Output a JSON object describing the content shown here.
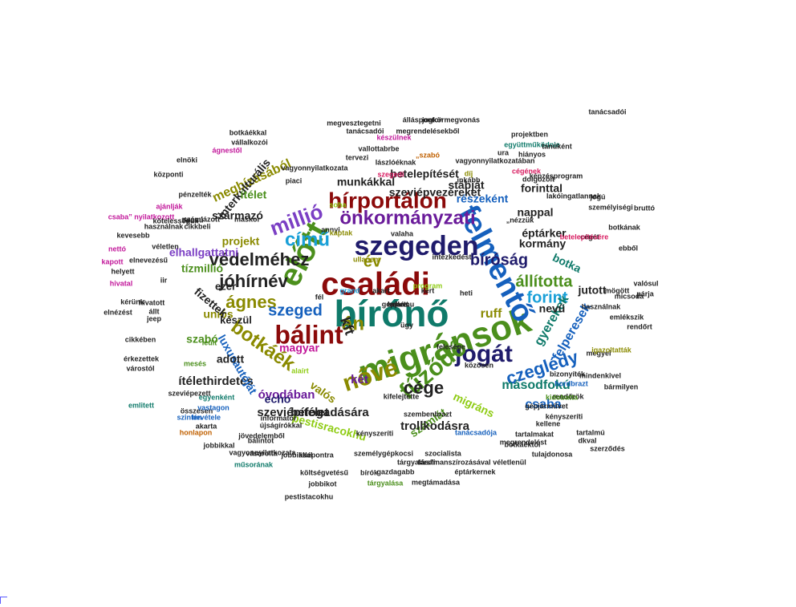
{
  "colors": {
    "navy": "#1f1b6b",
    "darkred": "#8b0a0a",
    "green": "#4b8f1c",
    "blue": "#1560bd",
    "purple": "#6a1b9a",
    "magenta": "#c2179a",
    "olive": "#8a8a00",
    "teal": "#0f7a6a",
    "brown": "#6b3a10",
    "dark": "#222222",
    "orange": "#c06000",
    "lime": "#8fcc14",
    "sky": "#1aa0d8",
    "rose": "#d81b60",
    "violet": "#7b3fc4"
  },
  "words": [
    {
      "t": "bírónő",
      "c": "teal",
      "s": 46
    },
    {
      "t": "családi",
      "c": "darkred",
      "s": 40
    },
    {
      "t": "migránsok",
      "c": "green",
      "s": 44
    },
    {
      "t": "előtt",
      "c": "green",
      "s": 40
    },
    {
      "t": "felmentő",
      "c": "blue",
      "s": 38
    },
    {
      "t": "szegeden",
      "c": "navy",
      "s": 34
    },
    {
      "t": "bálint",
      "c": "darkred",
      "s": 32
    },
    {
      "t": "jogát",
      "c": "navy",
      "s": 30
    },
    {
      "t": "fűződő",
      "c": "green",
      "s": 30
    },
    {
      "t": "nővé",
      "c": "olive",
      "s": 30
    },
    {
      "t": "hírportálon",
      "c": "darkred",
      "s": 28
    },
    {
      "t": "önkormányzati",
      "c": "purple",
      "s": 24
    },
    {
      "t": "védelméhez",
      "c": "dark",
      "s": 22
    },
    {
      "t": "jóhírnév",
      "c": "dark",
      "s": 22
    },
    {
      "t": "ágnes",
      "c": "olive",
      "s": 22
    },
    {
      "t": "millió",
      "c": "violet",
      "s": 26
    },
    {
      "t": "című",
      "c": "sky",
      "s": 24
    },
    {
      "t": "bíróság",
      "c": "navy",
      "s": 20
    },
    {
      "t": "állította",
      "c": "green",
      "s": 20
    },
    {
      "t": "forint",
      "c": "sky",
      "s": 20
    },
    {
      "t": "szeged",
      "c": "blue",
      "s": 20
    },
    {
      "t": "botkáék",
      "c": "olive",
      "s": 24
    },
    {
      "t": "cége",
      "c": "dark",
      "s": 22
    },
    {
      "t": "czeglédy",
      "c": "blue",
      "s": 22
    },
    {
      "t": "án",
      "c": "olive",
      "s": 24
    },
    {
      "t": "év",
      "c": "olive",
      "s": 20
    },
    {
      "t": "kft",
      "c": "dark",
      "s": 18
    },
    {
      "t": "magyar",
      "c": "magenta",
      "s": 14
    },
    {
      "t": "felperesek",
      "c": "blue",
      "s": 16
    },
    {
      "t": "gyerekek",
      "c": "teal",
      "s": 16
    },
    {
      "t": "ruff",
      "c": "olive",
      "s": 16
    },
    {
      "t": "másodfokú",
      "c": "teal",
      "s": 16
    },
    {
      "t": "csaba",
      "c": "blue",
      "s": 16
    },
    {
      "t": "migráns",
      "c": "lime",
      "s": 14
    },
    {
      "t": "számlát",
      "c": "green",
      "s": 14
    },
    {
      "t": "trollkodásra",
      "c": "dark",
      "s": 15
    },
    {
      "t": "befogadására",
      "c": "dark",
      "s": 15
    },
    {
      "t": "szeviépítélet",
      "c": "dark",
      "s": 15
    },
    {
      "t": "ítélethirdetés",
      "c": "dark",
      "s": 15
    },
    {
      "t": "óvodában",
      "c": "purple",
      "s": 15
    },
    {
      "t": "echo",
      "c": "navy",
      "s": 14
    },
    {
      "t": "pestisracokhu",
      "c": "lime",
      "s": 14
    },
    {
      "t": "két",
      "c": "purple",
      "s": 15
    },
    {
      "t": "valós",
      "c": "olive",
      "s": 14
    },
    {
      "t": "luxusautóját",
      "c": "blue",
      "s": 14
    },
    {
      "t": "adott",
      "c": "dark",
      "s": 14
    },
    {
      "t": "szabó",
      "c": "green",
      "s": 14
    },
    {
      "t": "uniós",
      "c": "olive",
      "s": 14
    },
    {
      "t": "fizettek",
      "c": "dark",
      "s": 14
    },
    {
      "t": "tízmillió",
      "c": "green",
      "s": 14
    },
    {
      "t": "elhallgattatni",
      "c": "violet",
      "s": 14
    },
    {
      "t": "megbízásából",
      "c": "olive",
      "s": 16
    },
    {
      "t": "interkulturális",
      "c": "dark",
      "s": 14
    },
    {
      "t": "származó",
      "c": "dark",
      "s": 14
    },
    {
      "t": "projekt",
      "c": "olive",
      "s": 14
    },
    {
      "t": "ítélet",
      "c": "green",
      "s": 14
    },
    {
      "t": "munkákkal",
      "c": "dark",
      "s": 14
    },
    {
      "t": "betelepítését",
      "c": "dark",
      "s": 14
    },
    {
      "t": "szeviépvezéreket",
      "c": "dark",
      "s": 14
    },
    {
      "t": "stábját",
      "c": "dark",
      "s": 14
    },
    {
      "t": "részeként",
      "c": "blue",
      "s": 14
    },
    {
      "t": "forinttal",
      "c": "dark",
      "s": 14
    },
    {
      "t": "nappal",
      "c": "dark",
      "s": 14
    },
    {
      "t": "éptárker",
      "c": "dark",
      "s": 14
    },
    {
      "t": "kormány",
      "c": "dark",
      "s": 14
    },
    {
      "t": "botka",
      "c": "teal",
      "s": 14
    },
    {
      "t": "jutott",
      "c": "dark",
      "s": 14
    },
    {
      "t": "nevű",
      "c": "dark",
      "s": 14
    },
    {
      "t": "készül",
      "c": "dark",
      "s": 13
    },
    {
      "t": "ezer",
      "c": "dark",
      "s": 13
    },
    {
      "t": "rendőrök",
      "c": "dark",
      "s": 9
    },
    {
      "t": "bizonyíték",
      "c": "dark",
      "s": 9
    },
    {
      "t": "kényszeríti",
      "c": "dark",
      "s": 9
    },
    {
      "t": "tartalmakat",
      "c": "dark",
      "s": 9
    },
    {
      "t": "tárgyalásán",
      "c": "dark",
      "s": 9
    },
    {
      "t": "társfinanszírozásával",
      "c": "dark",
      "s": 9
    },
    {
      "t": "véletlenül",
      "c": "dark",
      "s": 9
    },
    {
      "t": "gazdagabb",
      "c": "dark",
      "s": 9
    },
    {
      "t": "éptárkernek",
      "c": "dark",
      "s": 9
    },
    {
      "t": "megtámadása",
      "c": "dark",
      "s": 9
    },
    {
      "t": "jobbikot",
      "c": "dark",
      "s": 9
    },
    {
      "t": "tárgyalása",
      "c": "green",
      "s": 9
    },
    {
      "t": "költségvetésű",
      "c": "dark",
      "s": 9
    },
    {
      "t": "bírók",
      "c": "dark",
      "s": 9
    },
    {
      "t": "szocialista",
      "c": "dark",
      "s": 9
    },
    {
      "t": "vagyonnyilatkozata",
      "c": "dark",
      "s": 9
    },
    {
      "t": "személygépkocsi",
      "c": "dark",
      "s": 9
    },
    {
      "t": "jobbikkal",
      "c": "dark",
      "s": 9
    },
    {
      "t": "jövedelemből",
      "c": "dark",
      "s": 9
    },
    {
      "t": "újságírókkal",
      "c": "dark",
      "s": 9
    },
    {
      "t": "informátor",
      "c": "dark",
      "s": 9
    },
    {
      "t": "összesen",
      "c": "dark",
      "s": 9
    },
    {
      "t": "szintén",
      "c": "blue",
      "s": 9
    },
    {
      "t": "honlapon",
      "c": "orange",
      "s": 9
    },
    {
      "t": "vastagon",
      "c": "blue",
      "s": 9
    },
    {
      "t": "bevétele",
      "c": "blue",
      "s": 9
    },
    {
      "t": "szeviépezett",
      "c": "dark",
      "s": 9
    },
    {
      "t": "érkezettek",
      "c": "dark",
      "s": 9
    },
    {
      "t": "várostól",
      "c": "dark",
      "s": 9
    },
    {
      "t": "cikkében",
      "c": "dark",
      "s": 9
    },
    {
      "t": "elnézést",
      "c": "dark",
      "s": 9
    },
    {
      "t": "kérünk",
      "c": "dark",
      "s": 9
    },
    {
      "t": "hivatal",
      "c": "magenta",
      "s": 9
    },
    {
      "t": "kapott",
      "c": "magenta",
      "s": 9
    },
    {
      "t": "nettó",
      "c": "magenta",
      "s": 9
    },
    {
      "t": "helyett",
      "c": "dark",
      "s": 9
    },
    {
      "t": "kevesebb",
      "c": "dark",
      "s": 9
    },
    {
      "t": "véletlen",
      "c": "dark",
      "s": 9
    },
    {
      "t": "csaba” nyilatkozott",
      "c": "magenta",
      "s": 9
    },
    {
      "t": "ajánlják",
      "c": "magenta",
      "s": 9
    },
    {
      "t": "pénzelték",
      "c": "dark",
      "s": 9
    },
    {
      "t": "központi",
      "c": "dark",
      "s": 9
    },
    {
      "t": "elnöki",
      "c": "dark",
      "s": 9
    },
    {
      "t": "ágnestől",
      "c": "magenta",
      "s": 9
    },
    {
      "t": "vállalkozói",
      "c": "dark",
      "s": 9
    },
    {
      "t": "botkáékkal",
      "c": "dark",
      "s": 9
    },
    {
      "t": "megvesztegetni",
      "c": "dark",
      "s": 9
    },
    {
      "t": "jogkörmegvonás",
      "c": "dark",
      "s": 9
    },
    {
      "t": "tanácsadói",
      "c": "dark",
      "s": 9
    },
    {
      "t": "megrendelésekből",
      "c": "dark",
      "s": 9
    },
    {
      "t": "projektben",
      "c": "dark",
      "s": 9
    },
    {
      "t": "együttműködnie",
      "c": "teal",
      "s": 9
    },
    {
      "t": "lászlóéknak",
      "c": "dark",
      "s": 9
    },
    {
      "t": "vagyonnyilatkozatában",
      "c": "dark",
      "s": 9
    },
    {
      "t": "dolgozóit",
      "c": "dark",
      "s": 9
    },
    {
      "t": "képzésprogram",
      "c": "dark",
      "s": 9
    },
    {
      "t": "lakóingatlannak",
      "c": "dark",
      "s": 9
    },
    {
      "t": "bruttó",
      "c": "dark",
      "s": 9
    },
    {
      "t": "személyiségi",
      "c": "dark",
      "s": 9
    },
    {
      "t": "botkának",
      "c": "dark",
      "s": 9
    },
    {
      "t": "cégét",
      "c": "dark",
      "s": 9
    },
    {
      "t": "ebből",
      "c": "dark",
      "s": 9
    },
    {
      "t": "valósul",
      "c": "dark",
      "s": 9
    },
    {
      "t": "párja",
      "c": "dark",
      "s": 9
    },
    {
      "t": "mögött",
      "c": "dark",
      "s": 9
    },
    {
      "t": "micsoda",
      "c": "dark",
      "s": 9
    },
    {
      "t": "használnak",
      "c": "dark",
      "s": 9
    },
    {
      "t": "emlékszik",
      "c": "dark",
      "s": 9
    },
    {
      "t": "rendőrt",
      "c": "dark",
      "s": 9
    },
    {
      "t": "megyei",
      "c": "dark",
      "s": 9
    },
    {
      "t": "mindenkivel",
      "c": "dark",
      "s": 9
    },
    {
      "t": "hordbrazt",
      "c": "blue",
      "s": 9
    },
    {
      "t": "bármilyen",
      "c": "dark",
      "s": 9
    },
    {
      "t": "tartalmú",
      "c": "dark",
      "s": 9
    },
    {
      "t": "dkval",
      "c": "dark",
      "s": 9
    },
    {
      "t": "kellene",
      "c": "dark",
      "s": 9
    },
    {
      "t": "szerződés",
      "c": "dark",
      "s": 9
    },
    {
      "t": "tulajdonosa",
      "c": "dark",
      "s": 9
    },
    {
      "t": "megrendelést",
      "c": "dark",
      "s": 9
    },
    {
      "t": "tanácsadója",
      "c": "blue",
      "s": 9
    },
    {
      "t": "botkáéktól",
      "c": "dark",
      "s": 9
    },
    {
      "t": "gépjárművet",
      "c": "dark",
      "s": 9
    },
    {
      "t": "kidobatta",
      "c": "green",
      "s": 9
    },
    {
      "t": "szembenbrazt",
      "c": "dark",
      "s": 9
    },
    {
      "t": "kényszeríti",
      "c": "dark",
      "s": 9
    },
    {
      "t": "kifelejtette",
      "c": "dark",
      "s": 9
    },
    {
      "t": "közösen",
      "c": "dark",
      "s": 9
    },
    {
      "t": "igazoltatták",
      "c": "olive",
      "s": 9
    },
    {
      "t": "felesége",
      "c": "dark",
      "s": 9
    },
    {
      "t": "alaírt",
      "c": "lime",
      "s": 9
    },
    {
      "t": "mesés",
      "c": "green",
      "s": 9
    },
    {
      "t": "leült",
      "c": "green",
      "s": 9
    },
    {
      "t": "tervezi",
      "c": "dark",
      "s": 9
    },
    {
      "t": "készülnek",
      "c": "magenta",
      "s": 9
    },
    {
      "t": "vallottabrbe",
      "c": "dark",
      "s": 9
    },
    {
      "t": "piaci",
      "c": "dark",
      "s": 9
    },
    {
      "t": "tanúként",
      "c": "dark",
      "s": 9
    },
    {
      "t": "hiányos",
      "c": "dark",
      "s": 9
    },
    {
      "t": "„szabó",
      "c": "orange",
      "s": 9
    },
    {
      "t": "szegedi",
      "c": "rose",
      "s": 9
    },
    {
      "t": "cégének",
      "c": "rose",
      "s": 9
    },
    {
      "t": "„nézzük",
      "c": "dark",
      "s": 9
    },
    {
      "t": "betelepítésére",
      "c": "rose",
      "s": 9
    },
    {
      "t": "típusú",
      "c": "dark",
      "s": 9
    },
    {
      "t": "használnak",
      "c": "dark",
      "s": 9
    },
    {
      "t": "kötelességük",
      "c": "dark",
      "s": 9
    },
    {
      "t": "számlázott",
      "c": "dark",
      "s": 9
    },
    {
      "t": "máskor",
      "c": "dark",
      "s": 9
    },
    {
      "t": "cikkbeli",
      "c": "dark",
      "s": 9
    },
    {
      "t": "elnevezésű",
      "c": "dark",
      "s": 9
    },
    {
      "t": "annyi",
      "c": "dark",
      "s": 9
    },
    {
      "t": "kaptak",
      "c": "olive",
      "s": 9
    },
    {
      "t": "grand",
      "c": "sky",
      "s": 9
    },
    {
      "t": "akart",
      "c": "dark",
      "s": 9
    },
    {
      "t": "heti",
      "c": "dark",
      "s": 9
    },
    {
      "t": "fél",
      "c": "dark",
      "s": 9
    },
    {
      "t": "kért",
      "c": "dark",
      "s": 9
    },
    {
      "t": "ügy",
      "c": "dark",
      "s": 9
    },
    {
      "t": "jeep",
      "c": "dark",
      "s": 9
    },
    {
      "t": "iir",
      "c": "dark",
      "s": 9
    },
    {
      "t": "hívatott",
      "c": "dark",
      "s": 9
    },
    {
      "t": "állt",
      "c": "dark",
      "s": 9
    },
    {
      "t": "emlitett",
      "c": "teal",
      "s": 9
    },
    {
      "t": "egyenként",
      "c": "teal",
      "s": 9
    },
    {
      "t": "akarta",
      "c": "dark",
      "s": 9
    },
    {
      "t": "műsorának",
      "c": "teal",
      "s": 9
    },
    {
      "t": "vásárolta",
      "c": "dark",
      "s": 9
    },
    {
      "t": "átlépontra",
      "c": "dark",
      "s": 9
    },
    {
      "t": "bálintot",
      "c": "dark",
      "s": 9
    },
    {
      "t": "pestistacokhu",
      "c": "dark",
      "s": 9
    },
    {
      "t": "jobbikkal",
      "c": "dark",
      "s": 9
    },
    {
      "t": "állásponton",
      "c": "dark",
      "s": 9
    },
    {
      "t": "vagyonnyilatkozata",
      "c": "dark",
      "s": 9
    },
    {
      "t": "tanácsadói",
      "c": "dark",
      "s": 9
    },
    {
      "t": "jogú",
      "c": "dark",
      "s": 9
    },
    {
      "t": "inkább",
      "c": "dark",
      "s": 9
    },
    {
      "t": "intézkedést",
      "c": "dark",
      "s": 9
    },
    {
      "t": "ullanem",
      "c": "olive",
      "s": 9
    },
    {
      "t": "valaha",
      "c": "dark",
      "s": 9
    },
    {
      "t": "soha",
      "c": "lime",
      "s": 9
    },
    {
      "t": "program",
      "c": "lime",
      "s": 9
    },
    {
      "t": "díj",
      "c": "olive",
      "s": 9
    },
    {
      "t": "ura",
      "c": "dark",
      "s": 9
    },
    {
      "t": "kellett",
      "c": "dark",
      "s": 9
    },
    {
      "t": "gepjarmu",
      "c": "dark",
      "s": 9
    },
    {
      "t": "tamás",
      "c": "dark",
      "s": 9
    }
  ]
}
